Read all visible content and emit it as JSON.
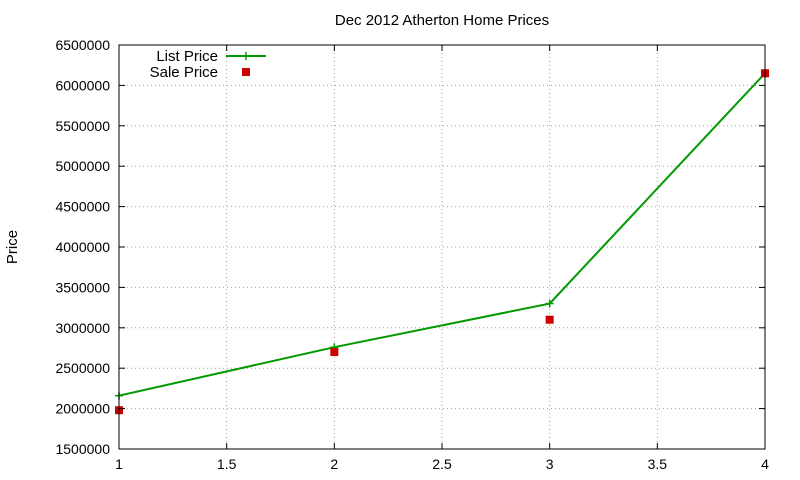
{
  "chart_data": {
    "type": "line",
    "title": "Dec 2012 Atherton Home Prices",
    "xlabel": "",
    "ylabel": "Price",
    "xlim": [
      1,
      4
    ],
    "ylim": [
      1500000,
      6500000
    ],
    "x_ticks": [
      1,
      1.5,
      2,
      2.5,
      3,
      3.5,
      4
    ],
    "x_tick_labels": [
      "1",
      "1.5",
      "2",
      "2.5",
      "3",
      "3.5",
      "4"
    ],
    "y_ticks": [
      1500000,
      2000000,
      2500000,
      3000000,
      3500000,
      4000000,
      4500000,
      5000000,
      5500000,
      6000000,
      6500000
    ],
    "y_tick_labels": [
      "1500000",
      "2000000",
      "2500000",
      "3000000",
      "3500000",
      "4000000",
      "4500000",
      "5000000",
      "5500000",
      "6000000",
      "6500000"
    ],
    "grid": true,
    "legend_position": "top-left",
    "series": [
      {
        "name": "List Price",
        "style": "line-with-plus-markers",
        "color": "#009900",
        "x": [
          1,
          2,
          3,
          4
        ],
        "y": [
          2160000,
          2760000,
          3300000,
          6150000
        ]
      },
      {
        "name": "Sale Price",
        "style": "square-markers",
        "color": "#cc0000",
        "x": [
          1,
          2,
          3,
          4
        ],
        "y": [
          1980000,
          2700000,
          3100000,
          6150000
        ]
      }
    ]
  }
}
